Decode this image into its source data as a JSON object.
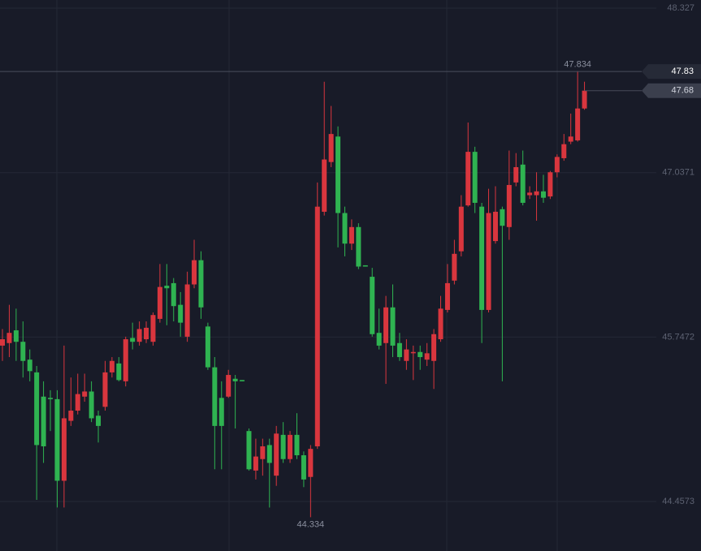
{
  "chart_data": {
    "type": "candlestick",
    "up_color": "#d9363e",
    "down_color": "#2fb351",
    "ylim": [
      44.069,
      48.391
    ],
    "yticks": [
      48.327,
      47.0371,
      45.7472,
      44.4573
    ],
    "grid": true,
    "max_label": 47.834,
    "min_label": 44.334,
    "crosshair_price": 47.83,
    "last_price": 47.68,
    "open": [
      45.68,
      45.7,
      45.8,
      45.71,
      45.57,
      45.47,
      45.28,
      45.27,
      45.26,
      44.62,
      45.09,
      45.17,
      45.28,
      45.32,
      45.13,
      45.2,
      45.47,
      45.54,
      45.4,
      45.74,
      45.71,
      45.73,
      45.71,
      45.89,
      46.15,
      46.17,
      46.0,
      45.75,
      46.16,
      46.35,
      45.83,
      45.51,
      45.27,
      45.28,
      45.42,
      45.41,
      45.01,
      44.7,
      44.79,
      44.9,
      44.66,
      44.98,
      44.79,
      44.98,
      44.82,
      44.65,
      44.89,
      46.73,
      47.12,
      47.32,
      46.72,
      46.48,
      46.61,
      46.31,
      46.22,
      45.78,
      45.7,
      45.98,
      45.7,
      45.56,
      45.62,
      45.63,
      45.57,
      45.56,
      45.73,
      45.96,
      46.19,
      46.42,
      46.78,
      47.2,
      46.77,
      45.96,
      46.5,
      46.75,
      46.61,
      46.96,
      47.1,
      46.86,
      46.86,
      46.89,
      46.85,
      47.04,
      47.15,
      47.28,
      47.29,
      47.54
    ],
    "high": [
      45.81,
      46.0,
      45.97,
      45.87,
      45.65,
      45.52,
      45.4,
      45.33,
      45.33,
      45.68,
      45.43,
      45.46,
      45.46,
      45.4,
      45.17,
      45.56,
      45.59,
      45.59,
      45.75,
      45.86,
      45.87,
      45.87,
      45.94,
      46.32,
      46.32,
      46.21,
      46.1,
      46.26,
      46.51,
      46.42,
      45.86,
      45.59,
      45.4,
      45.49,
      45.45,
      45.41,
      45.03,
      44.95,
      44.95,
      44.95,
      45.05,
      45.08,
      45.01,
      45.15,
      44.85,
      44.9,
      46.96,
      47.75,
      47.56,
      47.4,
      46.77,
      46.67,
      46.64,
      46.31,
      46.29,
      45.97,
      46.07,
      46.16,
      45.78,
      45.73,
      45.68,
      45.68,
      45.7,
      45.81,
      46.07,
      46.32,
      46.51,
      46.86,
      47.43,
      47.24,
      46.8,
      46.91,
      46.93,
      46.77,
      47.21,
      47.19,
      47.21,
      46.93,
      47.04,
      47.02,
      47.05,
      47.18,
      47.34,
      47.5,
      47.834,
      47.75
    ],
    "low": [
      45.56,
      45.59,
      45.56,
      45.43,
      45.4,
      44.47,
      44.76,
      45.01,
      44.41,
      44.41,
      45.05,
      45.14,
      45.24,
      45.08,
      44.92,
      45.17,
      45.43,
      45.4,
      45.36,
      45.65,
      45.68,
      45.7,
      45.68,
      45.86,
      45.84,
      45.87,
      45.75,
      45.71,
      46.13,
      45.89,
      45.49,
      44.71,
      44.71,
      45.27,
      45.03,
      45.4,
      44.7,
      44.63,
      44.66,
      44.41,
      44.58,
      44.76,
      44.76,
      44.79,
      44.57,
      44.334,
      44.87,
      46.7,
      47.08,
      46.45,
      46.38,
      46.43,
      46.28,
      46.3,
      45.75,
      45.65,
      45.38,
      45.59,
      45.56,
      45.49,
      45.41,
      45.49,
      45.52,
      45.34,
      45.71,
      45.94,
      46.16,
      46.38,
      46.77,
      46.72,
      45.7,
      45.94,
      46.48,
      45.4,
      46.51,
      46.93,
      46.78,
      46.83,
      46.66,
      46.8,
      46.83,
      47.0,
      47.13,
      47.26,
      47.28,
      47.53
    ],
    "close": [
      45.73,
      45.78,
      45.71,
      45.56,
      45.48,
      44.9,
      44.89,
      45.26,
      44.62,
      45.11,
      45.17,
      45.3,
      45.32,
      45.11,
      45.05,
      45.47,
      45.56,
      45.41,
      45.73,
      45.71,
      45.81,
      45.82,
      45.92,
      46.14,
      46.13,
      45.99,
      45.86,
      46.16,
      46.35,
      45.98,
      45.51,
      45.05,
      45.05,
      45.45,
      45.4,
      45.4,
      44.71,
      44.81,
      44.89,
      44.76,
      44.99,
      44.79,
      44.98,
      44.82,
      44.63,
      44.87,
      46.77,
      47.14,
      47.34,
      46.72,
      46.48,
      46.61,
      46.3,
      46.3,
      45.77,
      45.68,
      45.98,
      45.68,
      45.59,
      45.65,
      45.63,
      45.59,
      45.62,
      45.77,
      45.97,
      46.17,
      46.4,
      46.77,
      47.2,
      46.8,
      45.96,
      46.72,
      46.73,
      46.62,
      46.94,
      47.08,
      46.8,
      46.88,
      46.89,
      46.84,
      47.04,
      47.16,
      47.26,
      47.32,
      47.54,
      47.68
    ]
  }
}
